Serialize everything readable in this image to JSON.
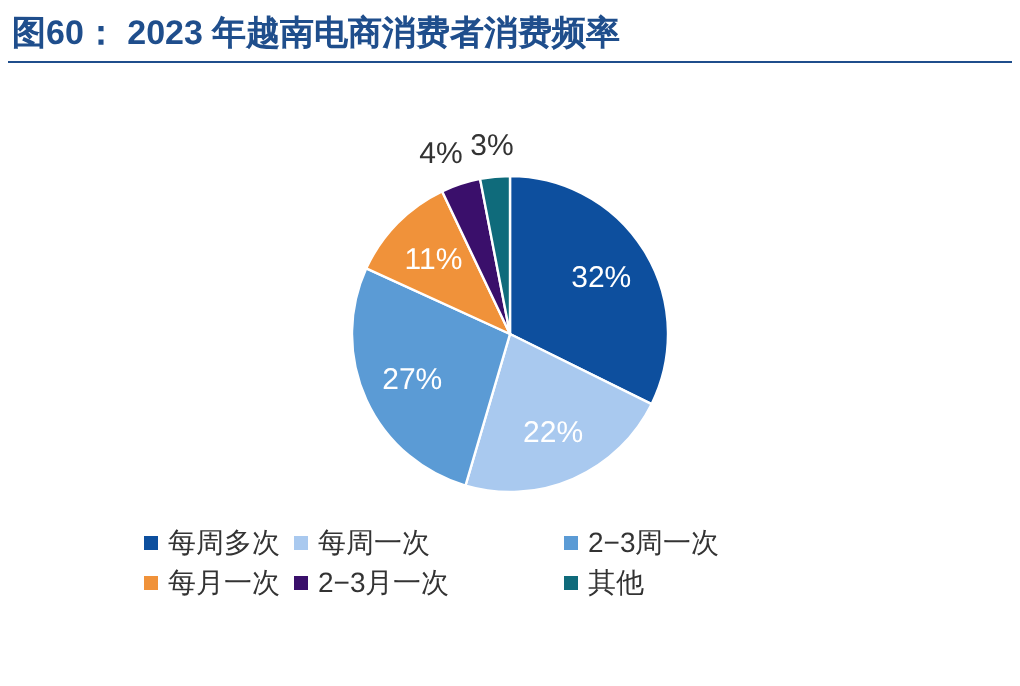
{
  "chart_data": {
    "type": "pie",
    "title": "图60：  2023 年越南电商消费者消费频率",
    "categories": [
      "每周多次",
      "每周一次",
      "2−3周一次",
      "每月一次",
      "2−3月一次",
      "其他"
    ],
    "values": [
      32,
      22,
      27,
      11,
      4,
      3
    ],
    "colors": [
      "#0d4f9e",
      "#a9c9ef",
      "#5b9bd5",
      "#f0923a",
      "#3a0f6b",
      "#0f6b7b"
    ],
    "value_labels": [
      "32%",
      "22%",
      "27%",
      "11%",
      "4%",
      "3%"
    ],
    "legend": "bottom"
  }
}
